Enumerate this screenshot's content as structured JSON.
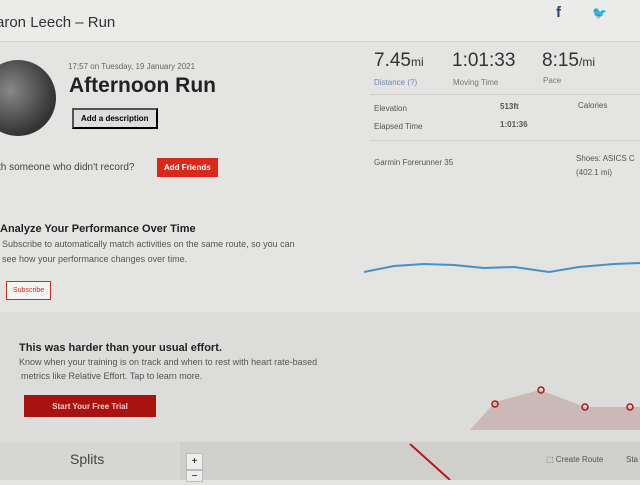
{
  "header": {
    "title": "aron Leech – Run",
    "social": [
      {
        "icon": "facebook-icon",
        "glyph": "f"
      },
      {
        "icon": "twitter-icon",
        "glyph": "🐦"
      }
    ]
  },
  "activity": {
    "datetime": "17:57 on Tuesday, 19 January 2021",
    "name": "Afternoon Run",
    "add_description": "Add a description",
    "with_someone": "th someone who didn't record?",
    "add_friends": "Add Friends"
  },
  "stats": {
    "distance": {
      "value": "7.45",
      "unit": "mi",
      "label": "Distance (?)"
    },
    "moving_time": {
      "value": "1:01:33",
      "label": "Moving Time"
    },
    "pace": {
      "value": "8:15",
      "unit": "/mi",
      "label": "Pace"
    },
    "elevation_label": "Elevation",
    "elevation": "513ft",
    "calories_label": "Calories",
    "elapsed_label": "Elapsed Time",
    "elapsed": "1:01:36",
    "device": "Garmin Forerunner 35",
    "shoes": "Shoes: ASICS C",
    "shoes_distance": "(402.1 mi)"
  },
  "analyze": {
    "title": "Analyze Your Performance Over Time",
    "text1": "Subscribe to automatically match activities on the same route, so you can",
    "text2": "see how your performance changes over time.",
    "subscribe": "Subscribe"
  },
  "effort": {
    "title": "This was harder than your usual effort.",
    "text1": "Know when your training is on track and when to rest with heart rate-based",
    "text2": "metrics like Relative Effort. Tap to learn more.",
    "trial": "Start Your Free Trial"
  },
  "bottom": {
    "splits": "Splits",
    "zoom_in": "+",
    "zoom_out": "−",
    "create_route": "Create Route",
    "more": "Sta"
  },
  "colors": {
    "accent": "#d9291b",
    "trend_line": "#4a90c8"
  }
}
